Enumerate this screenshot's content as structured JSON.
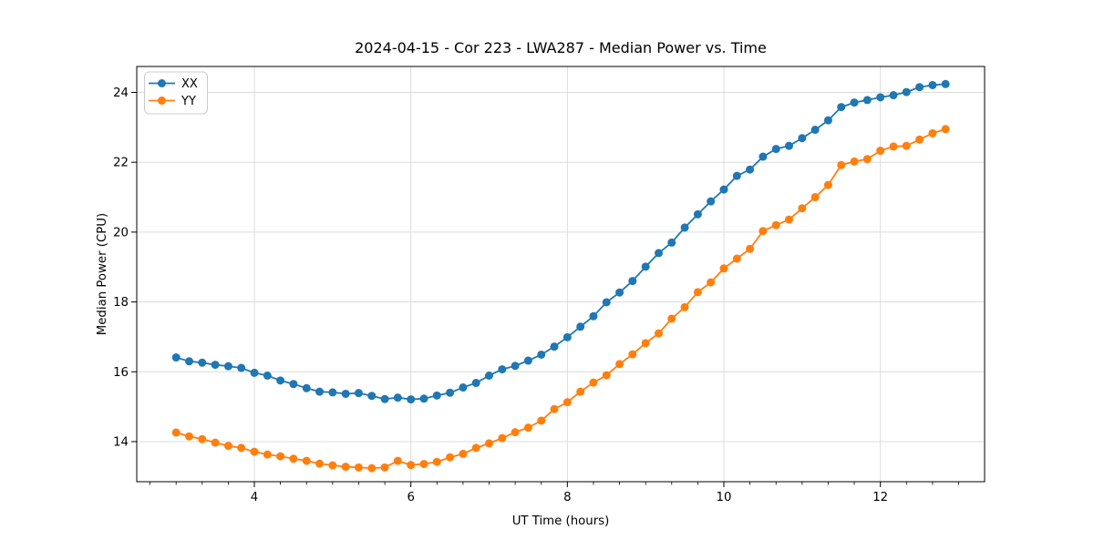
{
  "chart_data": {
    "type": "line",
    "title": "2024-04-15 - Cor 223 - LWA287 - Median Power vs. Time",
    "xlabel": "UT Time (hours)",
    "ylabel": "Median Power (CPU)",
    "legend_position": "upper left",
    "grid": true,
    "grid_color": "#dcdcdc",
    "background": "#ffffff",
    "spine_color": "#000000",
    "xlim": [
      2.497,
      13.332
    ],
    "ylim": [
      12.852,
      24.743
    ],
    "xticks": [
      4,
      6,
      8,
      10,
      12
    ],
    "xtick_labels": [
      "4",
      "6",
      "8",
      "10",
      "12"
    ],
    "x_minor_step": 0.3333,
    "yticks": [
      14,
      16,
      18,
      20,
      22,
      24
    ],
    "ytick_labels": [
      "14",
      "16",
      "18",
      "20",
      "22",
      "24"
    ],
    "marker": "circle",
    "x": [
      3.0,
      3.167,
      3.333,
      3.5,
      3.667,
      3.833,
      4.0,
      4.167,
      4.333,
      4.5,
      4.667,
      4.833,
      5.0,
      5.167,
      5.333,
      5.5,
      5.667,
      5.833,
      6.0,
      6.167,
      6.333,
      6.5,
      6.667,
      6.833,
      7.0,
      7.167,
      7.333,
      7.5,
      7.667,
      7.833,
      8.0,
      8.167,
      8.333,
      8.5,
      8.667,
      8.833,
      9.0,
      9.167,
      9.333,
      9.5,
      9.667,
      9.833,
      10.0,
      10.167,
      10.333,
      10.5,
      10.667,
      10.833,
      11.0,
      11.167,
      11.333,
      11.5,
      11.667,
      11.833,
      12.0,
      12.167,
      12.333,
      12.5,
      12.667,
      12.833
    ],
    "series": [
      {
        "name": "XX",
        "color": "#1f77b4",
        "values": [
          16.41,
          16.3,
          16.26,
          16.2,
          16.16,
          16.11,
          15.97,
          15.89,
          15.75,
          15.65,
          15.53,
          15.43,
          15.41,
          15.37,
          15.39,
          15.31,
          15.22,
          15.26,
          15.21,
          15.23,
          15.32,
          15.4,
          15.55,
          15.68,
          15.89,
          16.07,
          16.17,
          16.32,
          16.49,
          16.72,
          16.99,
          17.29,
          17.59,
          17.99,
          18.27,
          18.6,
          19.01,
          19.4,
          19.7,
          20.13,
          20.51,
          20.88,
          21.22,
          21.61,
          21.79,
          22.16,
          22.38,
          22.47,
          22.69,
          22.93,
          23.2,
          23.58,
          23.71,
          23.78,
          23.86,
          23.92,
          24.01,
          24.15,
          24.21,
          24.24
        ]
      },
      {
        "name": "YY",
        "color": "#ff7f0e",
        "values": [
          14.26,
          14.15,
          14.07,
          13.97,
          13.88,
          13.82,
          13.71,
          13.63,
          13.58,
          13.51,
          13.45,
          13.37,
          13.32,
          13.28,
          13.26,
          13.24,
          13.26,
          13.45,
          13.33,
          13.36,
          13.42,
          13.55,
          13.65,
          13.82,
          13.95,
          14.1,
          14.27,
          14.4,
          14.6,
          14.93,
          15.13,
          15.43,
          15.69,
          15.9,
          16.22,
          16.5,
          16.82,
          17.1,
          17.52,
          17.85,
          18.28,
          18.56,
          18.96,
          19.24,
          19.52,
          20.03,
          20.2,
          20.36,
          20.68,
          21.0,
          21.35,
          21.92,
          22.02,
          22.09,
          22.33,
          22.45,
          22.47,
          22.65,
          22.83,
          22.95
        ]
      }
    ]
  }
}
